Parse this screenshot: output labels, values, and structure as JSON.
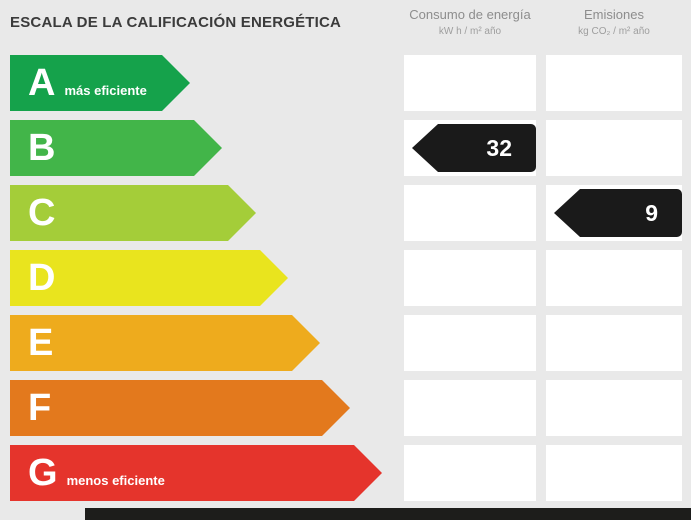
{
  "header": {
    "title": "ESCALA DE LA CALIFICACIÓN ENERGÉTICA",
    "consumo": {
      "label": "Consumo de energía",
      "unit": "kW h / m² año"
    },
    "emisiones": {
      "label": "Emisiones",
      "unit": "kg CO₂ / m² año"
    }
  },
  "rows": [
    {
      "letter": "A",
      "sublabel": "más eficiente",
      "color": "#15a24b",
      "consumo_value": null,
      "emisiones_value": null
    },
    {
      "letter": "B",
      "sublabel": "",
      "color": "#42b549",
      "consumo_value": "32",
      "emisiones_value": null
    },
    {
      "letter": "C",
      "sublabel": "",
      "color": "#a4cd39",
      "consumo_value": null,
      "emisiones_value": "9"
    },
    {
      "letter": "D",
      "sublabel": "",
      "color": "#e9e41e",
      "consumo_value": null,
      "emisiones_value": null
    },
    {
      "letter": "E",
      "sublabel": "",
      "color": "#eeab1d",
      "consumo_value": null,
      "emisiones_value": null
    },
    {
      "letter": "F",
      "sublabel": "",
      "color": "#e3791d",
      "consumo_value": null,
      "emisiones_value": null
    },
    {
      "letter": "G",
      "sublabel": "menos eficiente",
      "color": "#e5342c",
      "consumo_value": null,
      "emisiones_value": null
    }
  ],
  "badge_color": "#1a1a1a",
  "chart_data": {
    "type": "table",
    "title": "ESCALA DE LA CALIFICACIÓN ENERGÉTICA",
    "categories": [
      "A",
      "B",
      "C",
      "D",
      "E",
      "F",
      "G"
    ],
    "series": [
      {
        "name": "Consumo de energía (kW h / m² año)",
        "rating": "B",
        "value": 32
      },
      {
        "name": "Emisiones (kg CO₂ / m² año)",
        "rating": "C",
        "value": 9
      }
    ],
    "legend_position": "none",
    "notes": "Energy rating scale A (más eficiente) to G (menos eficiente); bars increase in width from A to G"
  }
}
